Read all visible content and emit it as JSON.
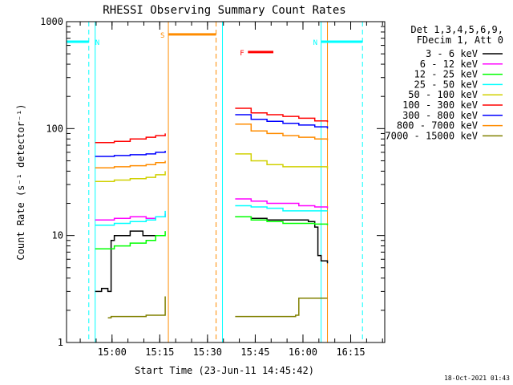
{
  "chart_data": {
    "type": "line",
    "title": "RHESSI Observing Summary Count Rates",
    "xlabel": "Start Time (23-Jun-11 14:45:42)",
    "ylabel": "Count Rate (s⁻¹ detector⁻¹)",
    "y_scale": "log",
    "ylim": [
      1,
      1000
    ],
    "xlim_minutes": [
      0,
      100
    ],
    "y_ticks": [
      {
        "value": 1,
        "label": "1"
      },
      {
        "value": 10,
        "label": "10"
      },
      {
        "value": 100,
        "label": "100"
      },
      {
        "value": 1000,
        "label": "1000"
      }
    ],
    "x_ticks": [
      {
        "minute": 14.3,
        "label": "15:00"
      },
      {
        "minute": 29.3,
        "label": "15:15"
      },
      {
        "minute": 44.3,
        "label": "15:30"
      },
      {
        "minute": 59.3,
        "label": "15:45"
      },
      {
        "minute": 74.3,
        "label": "16:00"
      },
      {
        "minute": 89.3,
        "label": "16:15"
      }
    ],
    "header_lines": [
      "Det 1,3,4,5,6,9,",
      "FDecim 1, Att 0"
    ],
    "timestamp": "18-Oct-2021 01:43",
    "legend_position": "right",
    "series": [
      {
        "name": "3 - 6 keV",
        "color": "#000000",
        "segments": [
          {
            "t": [
              9,
              11,
              13,
              14,
              15,
              16,
              20,
              24,
              28,
              31
            ],
            "v": [
              3,
              3.2,
              3,
              9,
              10,
              10,
              11,
              10,
              10,
              10
            ]
          },
          {
            "t": [
              53,
              58,
              63,
              68,
              73,
              76,
              78,
              79,
              80,
              82
            ],
            "v": [
              15,
              14.5,
              14,
              14,
              14,
              13.5,
              12,
              6.5,
              5.8,
              5.5
            ]
          }
        ]
      },
      {
        "name": "6 - 12 keV",
        "color": "#ff00ff",
        "segments": [
          {
            "t": [
              9,
              15,
              20,
              25,
              28,
              31
            ],
            "v": [
              14,
              14.5,
              15,
              14.5,
              15,
              16
            ]
          },
          {
            "t": [
              53,
              58,
              63,
              68,
              73,
              78,
              82
            ],
            "v": [
              22,
              21,
              20,
              20,
              19,
              18.5,
              18
            ]
          }
        ]
      },
      {
        "name": "12 - 25 keV",
        "color": "#00ff00",
        "segments": [
          {
            "t": [
              9,
              15,
              20,
              25,
              28,
              31
            ],
            "v": [
              7.5,
              8,
              8.5,
              9,
              10,
              11
            ]
          },
          {
            "t": [
              53,
              58,
              63,
              68,
              73,
              78,
              82
            ],
            "v": [
              15,
              14,
              13.5,
              13,
              13,
              12.8,
              12.5
            ]
          }
        ]
      },
      {
        "name": "25 - 50 keV",
        "color": "#00ffff",
        "segments": [
          {
            "t": [
              9,
              15,
              20,
              25,
              28,
              31
            ],
            "v": [
              12.5,
              13,
              13.5,
              14,
              15,
              17
            ]
          },
          {
            "t": [
              53,
              58,
              63,
              68,
              73,
              78,
              82
            ],
            "v": [
              19,
              18.5,
              18,
              17,
              17,
              17,
              17
            ]
          }
        ]
      },
      {
        "name": "50 - 100 keV",
        "color": "#d0d000",
        "segments": [
          {
            "t": [
              9,
              15,
              20,
              25,
              28,
              31
            ],
            "v": [
              32,
              33,
              34,
              35,
              37,
              40
            ]
          },
          {
            "t": [
              53,
              58,
              63,
              68,
              73,
              78,
              82
            ],
            "v": [
              58,
              50,
              46,
              44,
              44,
              44,
              42
            ]
          }
        ]
      },
      {
        "name": "100 - 300 keV",
        "color": "#ff0000",
        "segments": [
          {
            "t": [
              9,
              15,
              20,
              25,
              28,
              31
            ],
            "v": [
              74,
              76,
              80,
              83,
              86,
              90
            ]
          },
          {
            "t": [
              53,
              58,
              63,
              68,
              73,
              78,
              82
            ],
            "v": [
              155,
              140,
              135,
              130,
              125,
              118,
              115
            ]
          }
        ]
      },
      {
        "name": "300 - 800 keV",
        "color": "#0000ff",
        "segments": [
          {
            "t": [
              9,
              15,
              20,
              25,
              28,
              31
            ],
            "v": [
              55,
              56,
              57,
              58,
              60,
              62
            ]
          },
          {
            "t": [
              53,
              58,
              63,
              68,
              73,
              78,
              82
            ],
            "v": [
              135,
              122,
              117,
              112,
              108,
              104,
              100
            ]
          }
        ]
      },
      {
        "name": "800 - 7000 keV",
        "color": "#ff8c00",
        "segments": [
          {
            "t": [
              9,
              15,
              20,
              25,
              28,
              31
            ],
            "v": [
              43,
              44,
              45,
              46,
              48,
              50
            ]
          },
          {
            "t": [
              53,
              58,
              63,
              68,
              73,
              78,
              82
            ],
            "v": [
              110,
              95,
              90,
              86,
              83,
              80,
              78
            ]
          }
        ]
      },
      {
        "name": "7000 - 15000 keV",
        "color": "#808000",
        "segments": [
          {
            "t": [
              13,
              14,
              20,
              25,
              30,
              31
            ],
            "v": [
              1.7,
              1.75,
              1.75,
              1.8,
              1.8,
              2.7
            ]
          },
          {
            "t": [
              53,
              60,
              68,
              72,
              73,
              80,
              82
            ],
            "v": [
              1.75,
              1.75,
              1.75,
              1.8,
              2.6,
              2.6,
              2.6
            ]
          }
        ]
      }
    ],
    "state_bars": [
      {
        "label": "N",
        "color": "#00ffff",
        "t_start": 0,
        "t_end": 7,
        "v": 650
      },
      {
        "label": "N",
        "color": "#00ffff",
        "t_start": 80,
        "t_end": 93,
        "v": 650
      },
      {
        "label": "S",
        "color": "#ff8c00",
        "t_start": 32,
        "t_end": 47,
        "v": 760
      },
      {
        "label": "F",
        "color": "#ff0000",
        "t_start": 57,
        "t_end": 65,
        "v": 520
      }
    ],
    "vertical_lines": [
      {
        "t": 7,
        "color": "#00ffff",
        "style": "dashed"
      },
      {
        "t": 9,
        "color": "#00ffff",
        "style": "solid"
      },
      {
        "t": 32,
        "color": "#ff8c00",
        "style": "solid"
      },
      {
        "t": 47,
        "color": "#ff8c00",
        "style": "dashed"
      },
      {
        "t": 49,
        "color": "#00ffff",
        "style": "solid"
      },
      {
        "t": 80,
        "color": "#00ffff",
        "style": "solid"
      },
      {
        "t": 82,
        "color": "#ff8c00",
        "style": "solid"
      },
      {
        "t": 93,
        "color": "#00ffff",
        "style": "dashed"
      }
    ]
  }
}
